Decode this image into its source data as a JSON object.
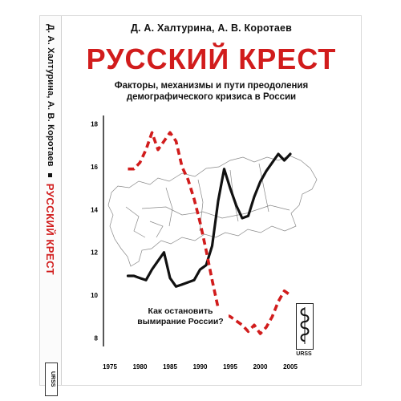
{
  "cover": {
    "authors": "Д. А. Халтурина, А. В. Коротаев",
    "title": "РУССКИЙ КРЕСТ",
    "subtitle_line1": "Факторы, механизмы и пути преодоления",
    "subtitle_line2": "демографического кризиса в России",
    "question_line1": "Как остановить",
    "question_line2": "вымирание России?",
    "publisher": "URSS"
  },
  "spine": {
    "authors": "Д. А. Халтурина, А. В. Коротаев",
    "title": "РУССКИЙ КРЕСТ",
    "publisher": "URSS"
  },
  "colors": {
    "title": "#d11c1c",
    "dashed_line": "#d11c1c",
    "solid_line": "#111111"
  },
  "chart_data": {
    "type": "line",
    "x_ticks": [
      1975,
      1980,
      1985,
      1990,
      1995,
      2000,
      2005
    ],
    "y_ticks": [
      8,
      10,
      12,
      14,
      16,
      18
    ],
    "xlim": [
      1975,
      2007
    ],
    "ylim": [
      7.6,
      18.4
    ],
    "series": [
      {
        "style": "solid",
        "x": [
          1978,
          1979,
          1980,
          1981,
          1982,
          1983,
          1984,
          1985,
          1986,
          1987,
          1988,
          1989,
          1990,
          1991,
          1992,
          1993,
          1994,
          1995,
          1996,
          1997,
          1998,
          1999,
          2000,
          2001,
          2002,
          2003,
          2004,
          2005
        ],
        "y": [
          10.9,
          10.9,
          10.8,
          10.7,
          11.2,
          11.6,
          12.0,
          10.8,
          10.4,
          10.5,
          10.6,
          10.7,
          11.2,
          11.4,
          12.3,
          14.4,
          15.9,
          15.0,
          14.2,
          13.6,
          13.7,
          14.6,
          15.3,
          15.8,
          16.2,
          16.6,
          16.3,
          16.6
        ]
      },
      {
        "style": "dashed",
        "x": [
          1978,
          1979,
          1980,
          1981,
          1982,
          1983,
          1984,
          1985,
          1986,
          1987,
          1988,
          1989,
          1990,
          1991,
          1992,
          1993,
          1994,
          1995,
          1996,
          1997,
          1998,
          1999,
          2000,
          2001,
          2002,
          2003,
          2004,
          2005
        ],
        "y": [
          15.9,
          15.9,
          16.2,
          16.8,
          17.6,
          16.8,
          17.2,
          17.6,
          17.2,
          16.0,
          15.4,
          14.5,
          13.4,
          12.1,
          10.7,
          9.4,
          9.1,
          9.0,
          8.8,
          8.6,
          8.3,
          8.6,
          8.2,
          8.5,
          9.0,
          9.7,
          10.2,
          10.0
        ]
      }
    ]
  }
}
